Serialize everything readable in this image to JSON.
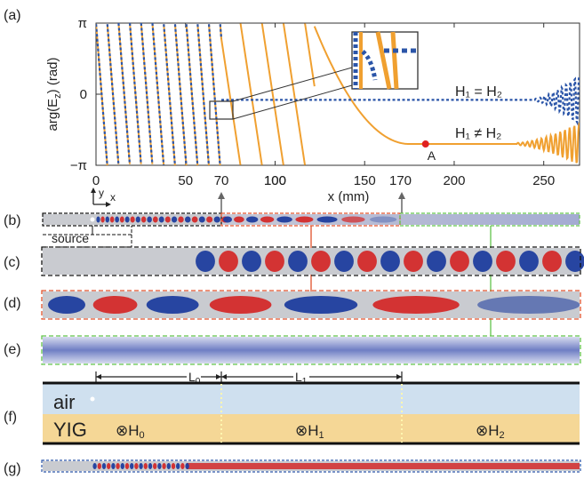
{
  "panel_labels": [
    "(a)",
    "(b)",
    "(c)",
    "(d)",
    "(e)",
    "(f)",
    "(g)"
  ],
  "chart_data": {
    "type": "line",
    "xlabel": "x (mm)",
    "ylabel": "arg(E_z) (rad)",
    "ylabel_main": "arg(E",
    "ylabel_sub": "z",
    "ylabel_tail": ") (rad)",
    "xlim": [
      0,
      270
    ],
    "ylim": [
      -3.1416,
      3.1416
    ],
    "xticks": [
      0,
      50,
      100,
      150,
      200,
      250
    ],
    "xtick_labels": [
      "0",
      "50",
      "100",
      "150",
      "200",
      "250"
    ],
    "yticks": [
      3.1416,
      0,
      -3.1416
    ],
    "ytick_labels": [
      "π",
      "0",
      "−π"
    ],
    "series": [
      {
        "name": "H₁ = H₂",
        "color": "#2b55a8",
        "style": "dashed"
      },
      {
        "name": "H₁ ≠ H₂",
        "color": "#f0a030",
        "style": "solid"
      }
    ],
    "point_A": {
      "label": "A",
      "x": 184,
      "y": -2.2,
      "color": "#e02020"
    },
    "markers": [
      {
        "label": "70",
        "x": 70
      },
      {
        "label": "100",
        "x": 100
      },
      {
        "label": "170",
        "x": 170
      }
    ]
  },
  "legend": {
    "equal": "H₁ = H₂",
    "notequal": "H₁ ≠ H₂"
  },
  "labels": {
    "source": "source",
    "axis_y": "y",
    "axis_x": "x",
    "air": "air",
    "yig": "YIG",
    "L0": "L",
    "L0_sub": "0",
    "L1": "L",
    "L1_sub": "1",
    "H0": "H",
    "H0_sub": "0",
    "H1": "H",
    "H1_sub": "1",
    "H2": "H",
    "H2_sub": "2",
    "otimes": "⊗"
  },
  "colors": {
    "blue": "#2b55a8",
    "orange": "#f0a030",
    "red": "#d42a2a",
    "field_blue": "#1f3d9e",
    "air": "#cfe0ef",
    "yig": "#f5d796",
    "waveguide_gray": "#c9cbd0",
    "box_black": "#111111",
    "box_red": "#e0512b",
    "box_green": "#62c44a"
  }
}
